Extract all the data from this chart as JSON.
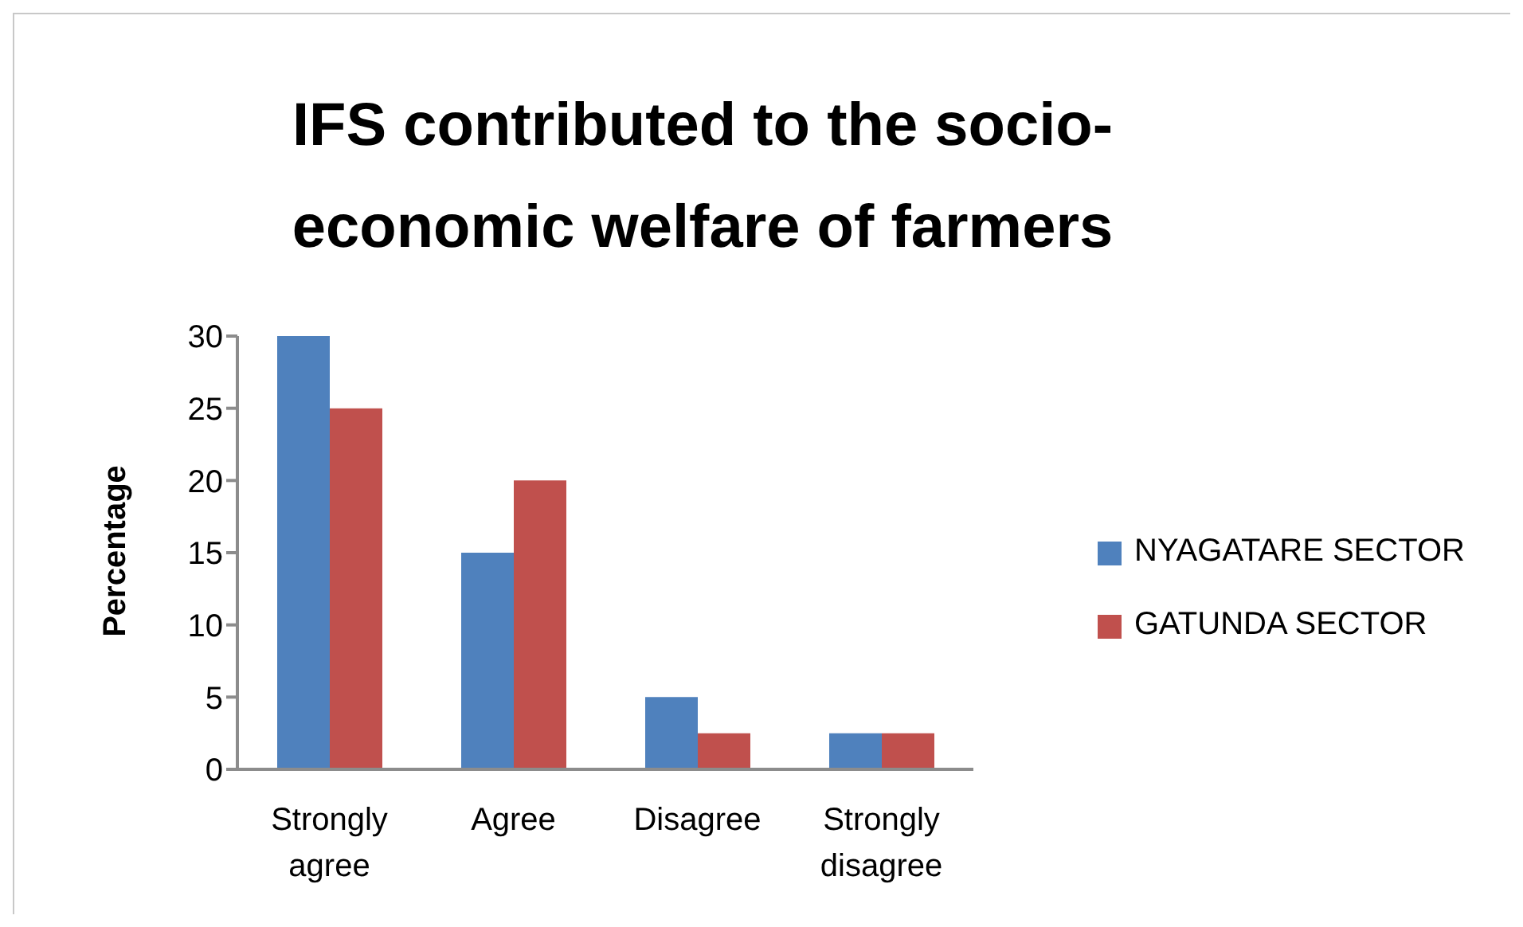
{
  "chart_data": {
    "type": "bar",
    "title": "IFS contributed to the socio-economic welfare of farmers",
    "ylabel": "Percentage",
    "categories": [
      "Strongly agree",
      "Agree",
      "Disagree",
      "Strongly disagree"
    ],
    "series": [
      {
        "name": "NYAGATARE SECTOR",
        "color": "#4f81bd",
        "values": [
          30,
          15,
          5,
          2.5
        ]
      },
      {
        "name": "GATUNDA SECTOR",
        "color": "#c0504d",
        "values": [
          25,
          20,
          2.5,
          2.5
        ]
      }
    ],
    "ylim": [
      0,
      30
    ],
    "yticks": [
      0,
      5,
      10,
      15,
      20,
      25,
      30
    ],
    "legend": "right"
  }
}
